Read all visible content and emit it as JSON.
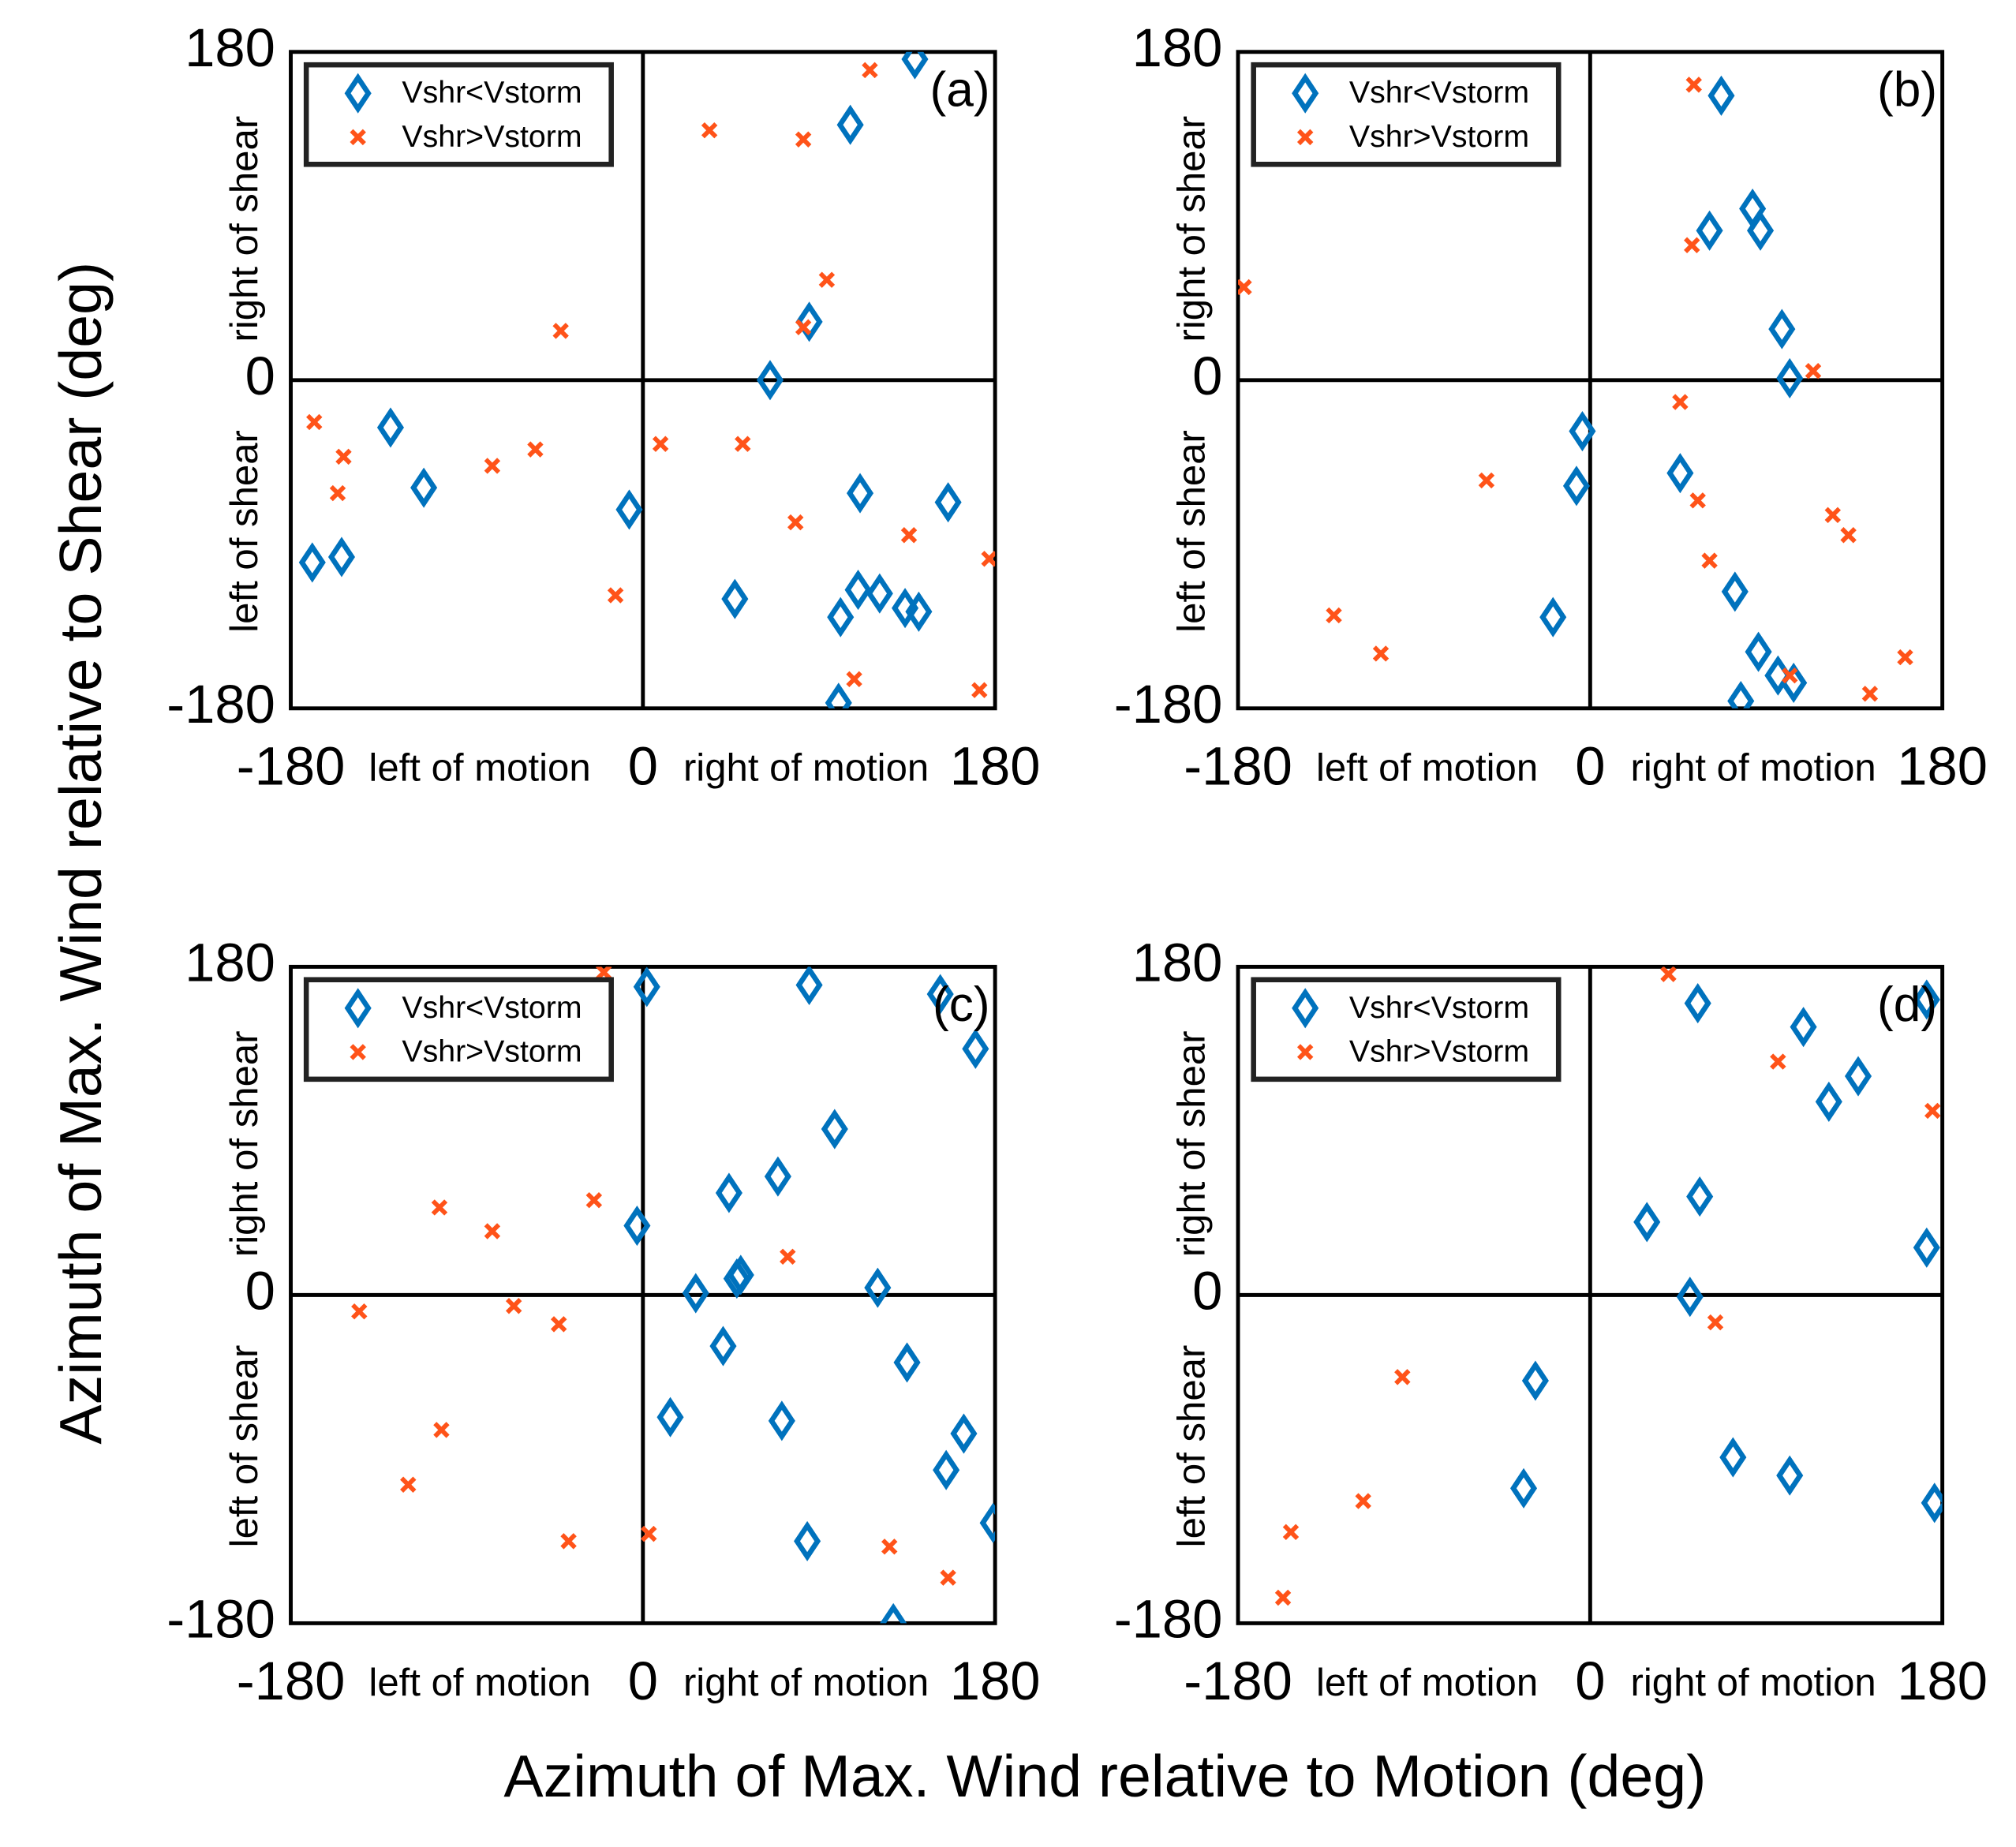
{
  "xlabel": "Azimuth of Max. Wind relative to Motion (deg)",
  "ylabel": "Azimuth of Max. Wind relative to Shear (deg)",
  "chart_data": [
    {
      "type": "scatter",
      "label": "(a)",
      "x_annotations": [
        "left of motion",
        "right of motion"
      ],
      "y_annotations": [
        "left of shear",
        "right of shear"
      ],
      "xlim": [
        -180,
        180
      ],
      "ylim": [
        -180,
        180
      ],
      "xticks": [
        -180,
        0,
        180
      ],
      "yticks": [
        -180,
        0,
        180
      ],
      "zero_lines": true,
      "legend": "upper left",
      "series": [
        {
          "name": "Vshr<Vstorm",
          "color": "#0072bd",
          "marker": "diamond",
          "x": [
            139,
            106,
            85,
            65,
            -129,
            -112,
            -7,
            111,
            156,
            -169,
            -154,
            47,
            110,
            121,
            101,
            134,
            141,
            100
          ],
          "y": [
            176,
            140,
            32,
            0,
            -26,
            -59,
            -71,
            -62,
            -67,
            -100,
            -97,
            -120,
            -115,
            -117,
            -130,
            -125,
            -127,
            -177
          ]
        },
        {
          "name": "Vshr>Vstorm",
          "color": "#ff5319",
          "marker": "x",
          "x": [
            116,
            34,
            82,
            94,
            82,
            -42,
            -168,
            -153,
            -156,
            -77,
            -55,
            9,
            51,
            78,
            136,
            -14,
            177,
            108,
            172
          ],
          "y": [
            170,
            137,
            132,
            55,
            29,
            27,
            -23,
            -42,
            -62,
            -47,
            -38,
            -35,
            -35,
            -78,
            -85,
            -118,
            -98,
            -164,
            -170
          ]
        }
      ]
    },
    {
      "type": "scatter",
      "label": "(b)",
      "x_annotations": [
        "left of motion",
        "right of motion"
      ],
      "y_annotations": [
        "left of shear",
        "right of shear"
      ],
      "xlim": [
        -180,
        180
      ],
      "ylim": [
        -180,
        180
      ],
      "xticks": [
        -180,
        0,
        180
      ],
      "yticks": [
        -180,
        0,
        180
      ],
      "zero_lines": true,
      "legend": "upper left",
      "series": [
        {
          "name": "Vshr<Vstorm",
          "color": "#0072bd",
          "marker": "diamond",
          "x": [
            67,
            61,
            83,
            87,
            98,
            102,
            -4,
            -7,
            46,
            74,
            -19,
            86,
            96,
            104,
            77
          ],
          "y": [
            156,
            82,
            94,
            82,
            28,
            1,
            -28,
            -58,
            -51,
            -116,
            -130,
            -149,
            -162,
            -166,
            -176
          ]
        },
        {
          "name": "Vshr>Vstorm",
          "color": "#ff5319",
          "marker": "x",
          "x": [
            53,
            52,
            -177,
            114,
            46,
            -53,
            55,
            124,
            132,
            61,
            -131,
            -107,
            102,
            143,
            161
          ],
          "y": [
            162,
            74,
            51,
            5,
            -12,
            -55,
            -66,
            -74,
            -85,
            -99,
            -129,
            -150,
            -162,
            -172,
            -152
          ]
        }
      ]
    },
    {
      "type": "scatter",
      "label": "(c)",
      "x_annotations": [
        "left of motion",
        "right of motion"
      ],
      "y_annotations": [
        "left of shear",
        "right of shear"
      ],
      "xlim": [
        -180,
        180
      ],
      "ylim": [
        -180,
        180
      ],
      "xticks": [
        -180,
        0,
        180
      ],
      "yticks": [
        -180,
        0,
        180
      ],
      "zero_lines": true,
      "legend": "upper left",
      "series": [
        {
          "name": "Vshr<Vstorm",
          "color": "#0072bd",
          "marker": "diamond",
          "x": [
            2,
            85,
            170,
            98,
            44,
            69,
            -3,
            48,
            50,
            27,
            120,
            41,
            135,
            14,
            71,
            164,
            155,
            179,
            84,
            128,
            152
          ],
          "y": [
            169,
            170,
            135,
            91,
            56,
            65,
            38,
            9,
            11,
            1,
            4,
            -28,
            -37,
            -67,
            -69,
            -76,
            -96,
            -125,
            -135,
            -180,
            165
          ]
        },
        {
          "name": "Vshr>Vstorm",
          "color": "#ff5319",
          "marker": "x",
          "x": [
            -20,
            -104,
            -77,
            -25,
            74,
            -145,
            -66,
            -43,
            -103,
            -120,
            -38,
            3,
            126,
            156
          ],
          "y": [
            177,
            48,
            35,
            52,
            21,
            -9,
            -6,
            -16,
            -74,
            -104,
            -135,
            -131,
            -138,
            -155
          ]
        }
      ]
    },
    {
      "type": "scatter",
      "label": "(d)",
      "x_annotations": [
        "left of motion",
        "right of motion"
      ],
      "y_annotations": [
        "left of shear",
        "right of shear"
      ],
      "xlim": [
        -180,
        180
      ],
      "ylim": [
        -180,
        180
      ],
      "xticks": [
        -180,
        0,
        180
      ],
      "yticks": [
        -180,
        0,
        180
      ],
      "zero_lines": true,
      "legend": "upper left",
      "series": [
        {
          "name": "Vshr<Vstorm",
          "color": "#0072bd",
          "marker": "diamond",
          "x": [
            55,
            109,
            172,
            137,
            122,
            56,
            29,
            51,
            172,
            -28,
            73,
            102,
            -34,
            176
          ],
          "y": [
            160,
            147,
            162,
            120,
            106,
            54,
            40,
            -1,
            26,
            -47,
            -89,
            -99,
            -106,
            -114
          ]
        },
        {
          "name": "Vshr>Vstorm",
          "color": "#ff5319",
          "marker": "x",
          "x": [
            40,
            96,
            175,
            64,
            -96,
            -116,
            -153,
            -157
          ],
          "y": [
            176,
            128,
            101,
            -15,
            -45,
            -113,
            -130,
            -166
          ]
        }
      ]
    }
  ]
}
